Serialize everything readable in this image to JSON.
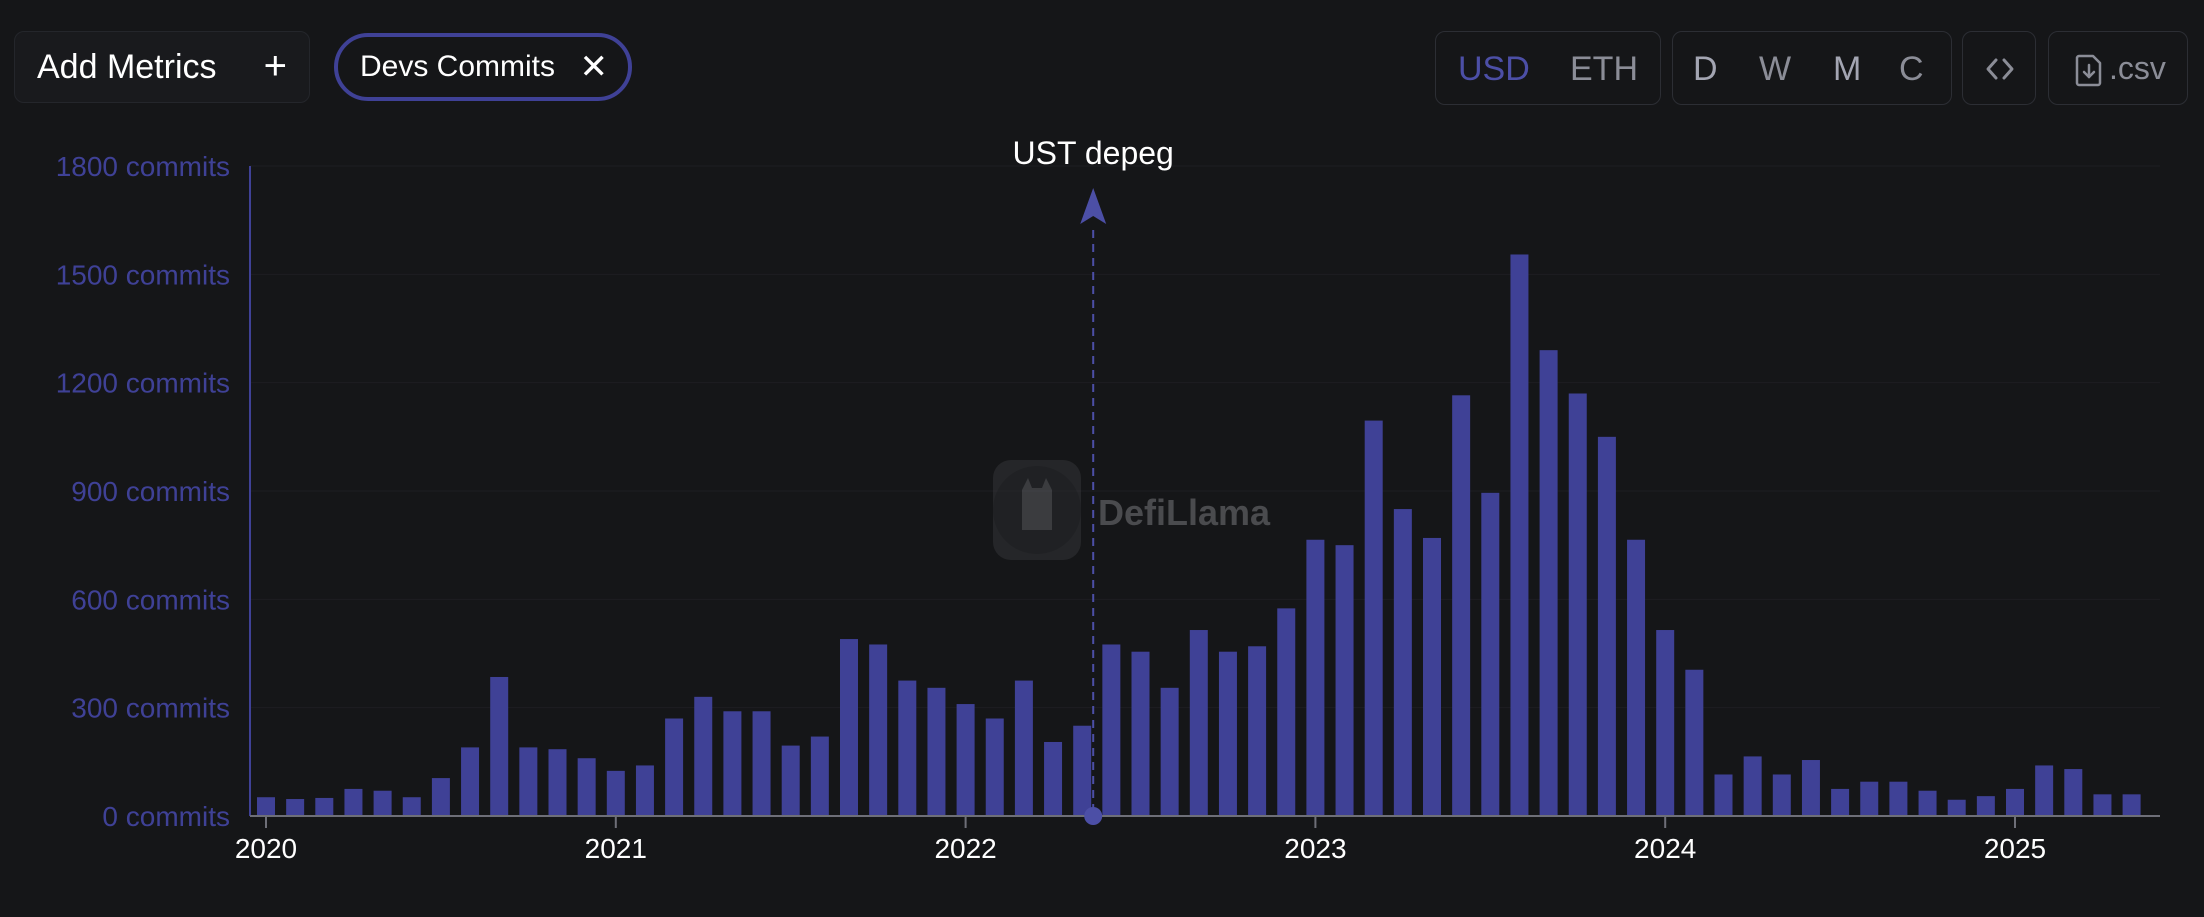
{
  "toolbar": {
    "add_metrics_label": "Add Metrics",
    "metric_chip_label": "Devs Commits",
    "currency_options": [
      "USD",
      "ETH"
    ],
    "currency_selected": "USD",
    "interval_options": [
      "D",
      "W",
      "M",
      "C"
    ],
    "interval_selected": "M",
    "csv_label": ".csv"
  },
  "colors": {
    "bar": "#3f4196",
    "axis_tick": "#3f4196",
    "background": "#151618"
  },
  "chart_data": {
    "type": "bar",
    "title": "",
    "xlabel": "",
    "ylabel": "",
    "ylim": [
      0,
      1800
    ],
    "y_ticks": [
      0,
      300,
      600,
      900,
      1200,
      1500,
      1800
    ],
    "y_tick_labels": [
      "0 commits",
      "300 commits",
      "600 commits",
      "900 commits",
      "1200 commits",
      "1500 commits",
      "1800 commits"
    ],
    "x_tick_labels": [
      "2020",
      "2021",
      "2022",
      "2023",
      "2024",
      "2025"
    ],
    "grid": true,
    "categories": [
      "2020-01",
      "2020-02",
      "2020-03",
      "2020-04",
      "2020-05",
      "2020-06",
      "2020-07",
      "2020-08",
      "2020-09",
      "2020-10",
      "2020-11",
      "2020-12",
      "2021-01",
      "2021-02",
      "2021-03",
      "2021-04",
      "2021-05",
      "2021-06",
      "2021-07",
      "2021-08",
      "2021-09",
      "2021-10",
      "2021-11",
      "2021-12",
      "2022-01",
      "2022-02",
      "2022-03",
      "2022-04",
      "2022-05",
      "2022-06",
      "2022-07",
      "2022-08",
      "2022-09",
      "2022-10",
      "2022-11",
      "2022-12",
      "2023-01",
      "2023-02",
      "2023-03",
      "2023-04",
      "2023-05",
      "2023-06",
      "2023-07",
      "2023-08",
      "2023-09",
      "2023-10",
      "2023-11",
      "2023-12",
      "2024-01",
      "2024-02",
      "2024-03",
      "2024-04",
      "2024-05",
      "2024-06",
      "2024-07",
      "2024-08",
      "2024-09",
      "2024-10",
      "2024-11",
      "2024-12",
      "2025-01",
      "2025-02",
      "2025-03",
      "2025-04",
      "2025-05"
    ],
    "values": [
      52,
      47,
      50,
      75,
      70,
      52,
      105,
      190,
      385,
      190,
      185,
      160,
      125,
      140,
      270,
      330,
      290,
      290,
      195,
      220,
      490,
      475,
      375,
      355,
      310,
      270,
      375,
      205,
      250,
      475,
      455,
      355,
      515,
      455,
      470,
      575,
      765,
      750,
      1095,
      850,
      770,
      1165,
      895,
      1555,
      1290,
      1170,
      1050,
      765,
      515,
      405,
      115,
      165,
      115,
      155,
      75,
      95,
      95,
      70,
      45,
      55,
      75,
      140,
      130,
      60,
      60
    ],
    "annotation": {
      "label": "UST depeg",
      "date": "2022-05"
    },
    "watermark": "DefiLlama"
  }
}
